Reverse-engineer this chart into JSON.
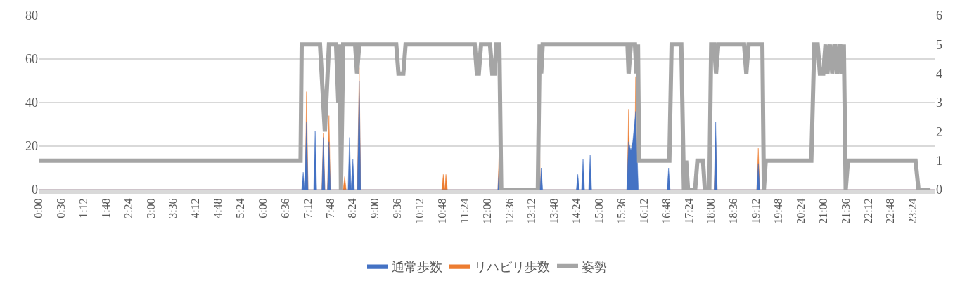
{
  "chart_data": {
    "type": "area",
    "legend": "bottom",
    "grid": "y",
    "xlim": [
      0,
      24
    ],
    "xticks": [
      {
        "value": 0,
        "label": "0:00"
      },
      {
        "value": 0.6,
        "label": "0:36"
      },
      {
        "value": 1.2,
        "label": "1:12"
      },
      {
        "value": 1.8,
        "label": "1:48"
      },
      {
        "value": 2.4,
        "label": "2:24"
      },
      {
        "value": 3.0,
        "label": "3:00"
      },
      {
        "value": 3.6,
        "label": "3:36"
      },
      {
        "value": 4.2,
        "label": "4:12"
      },
      {
        "value": 4.8,
        "label": "4:48"
      },
      {
        "value": 5.4,
        "label": "5:24"
      },
      {
        "value": 6.0,
        "label": "6:00"
      },
      {
        "value": 6.6,
        "label": "6:36"
      },
      {
        "value": 7.2,
        "label": "7:12"
      },
      {
        "value": 7.8,
        "label": "7:48"
      },
      {
        "value": 8.4,
        "label": "8:24"
      },
      {
        "value": 9.0,
        "label": "9:00"
      },
      {
        "value": 9.6,
        "label": "9:36"
      },
      {
        "value": 10.2,
        "label": "10:12"
      },
      {
        "value": 10.8,
        "label": "10:48"
      },
      {
        "value": 11.4,
        "label": "11:24"
      },
      {
        "value": 12.0,
        "label": "12:00"
      },
      {
        "value": 12.6,
        "label": "12:36"
      },
      {
        "value": 13.2,
        "label": "13:12"
      },
      {
        "value": 13.8,
        "label": "13:48"
      },
      {
        "value": 14.4,
        "label": "14:24"
      },
      {
        "value": 15.0,
        "label": "15:00"
      },
      {
        "value": 15.6,
        "label": "15:36"
      },
      {
        "value": 16.2,
        "label": "16:12"
      },
      {
        "value": 16.8,
        "label": "16:48"
      },
      {
        "value": 17.4,
        "label": "17:24"
      },
      {
        "value": 18.0,
        "label": "18:00"
      },
      {
        "value": 18.6,
        "label": "18:36"
      },
      {
        "value": 19.2,
        "label": "19:12"
      },
      {
        "value": 19.8,
        "label": "19:48"
      },
      {
        "value": 20.4,
        "label": "20:24"
      },
      {
        "value": 21.0,
        "label": "21:00"
      },
      {
        "value": 21.6,
        "label": "21:36"
      },
      {
        "value": 22.2,
        "label": "22:12"
      },
      {
        "value": 22.8,
        "label": "22:48"
      },
      {
        "value": 23.4,
        "label": "23:24"
      }
    ],
    "ylim": [
      0,
      80
    ],
    "yticks": [
      0,
      20,
      40,
      60,
      80
    ],
    "y2lim": [
      0,
      6
    ],
    "y2ticks": [
      0,
      1,
      2,
      3,
      4,
      5,
      6
    ],
    "series": [
      {
        "name": "通常歩数",
        "color": "#4472c4",
        "x": [
          0,
          7.04,
          7.08,
          7.12,
          7.17,
          7.21,
          7.36,
          7.4,
          7.44,
          7.58,
          7.62,
          7.66,
          7.73,
          7.77,
          7.81,
          8.28,
          8.32,
          8.36,
          8.41,
          8.45,
          8.53,
          8.58,
          8.62,
          12.29,
          12.33,
          12.37,
          13.35,
          13.39,
          13.42,
          13.45,
          13.49,
          14.39,
          14.43,
          14.47,
          14.53,
          14.57,
          14.61,
          14.72,
          14.76,
          14.8,
          15.74,
          15.79,
          15.85,
          15.9,
          15.98,
          16.05,
          16.82,
          16.86,
          16.9,
          18.08,
          18.12,
          18.16,
          19.22,
          19.26,
          19.3,
          23.98
        ],
        "values": [
          0,
          0,
          8,
          0,
          31,
          0,
          0,
          27,
          0,
          0,
          24,
          0,
          0,
          22,
          0,
          0,
          24,
          0,
          14,
          0,
          0,
          50,
          0,
          0,
          12,
          0,
          0,
          16,
          0,
          10,
          0,
          0,
          7,
          0,
          0,
          14,
          0,
          0,
          16,
          0,
          0,
          22,
          18,
          22,
          36,
          0,
          0,
          10,
          0,
          0,
          31,
          0,
          0,
          12,
          0,
          0
        ]
      },
      {
        "name": "リハビリ歩数",
        "color": "#ed7d31",
        "x": [
          0,
          7.13,
          7.17,
          7.21,
          7.58,
          7.62,
          7.66,
          7.73,
          7.77,
          7.81,
          8.15,
          8.19,
          8.23,
          8.53,
          8.58,
          8.62,
          10.79,
          10.83,
          10.87,
          10.9,
          10.94,
          12.29,
          12.33,
          12.37,
          13.35,
          13.39,
          13.43,
          15.75,
          15.79,
          15.83,
          15.94,
          15.98,
          16.02,
          18.08,
          18.12,
          18.16,
          19.22,
          19.26,
          19.3,
          23.98
        ],
        "values": [
          0,
          0,
          45,
          0,
          0,
          26,
          0,
          0,
          34,
          0,
          0,
          6,
          0,
          0,
          56,
          0,
          0,
          7,
          0,
          7,
          0,
          0,
          20,
          0,
          0,
          37,
          0,
          0,
          37,
          0,
          0,
          52,
          0,
          0,
          22,
          0,
          0,
          19,
          0,
          0
        ]
      },
      {
        "name": "姿勢",
        "type": "line",
        "axis": "y2",
        "color": "#a5a5a5",
        "x": [
          0,
          7.01,
          7.04,
          7.53,
          7.66,
          7.77,
          7.96,
          8.02,
          8.06,
          8.09,
          8.15,
          8.47,
          8.52,
          8.58,
          9.57,
          9.63,
          9.76,
          9.82,
          11.67,
          11.73,
          11.78,
          11.84,
          12.08,
          12.14,
          12.2,
          12.25,
          12.33,
          12.38,
          13.36,
          13.41,
          13.45,
          13.49,
          15.76,
          15.79,
          15.85,
          15.96,
          16.0,
          16.04,
          16.07,
          16.88,
          16.94,
          17.2,
          17.27,
          17.33,
          17.38,
          17.57,
          17.63,
          17.78,
          17.83,
          17.95,
          18.0,
          18.08,
          18.13,
          18.19,
          18.88,
          18.94,
          19.0,
          19.37,
          19.41,
          19.46,
          20.68,
          20.76,
          20.85,
          20.91,
          21.0,
          21.06,
          21.11,
          21.19,
          21.24,
          21.32,
          21.38,
          21.45,
          21.51,
          21.55,
          21.6,
          21.66,
          23.47,
          23.55,
          23.87
        ],
        "values": [
          1,
          1,
          5,
          5,
          2,
          5,
          5,
          3,
          5,
          0,
          5,
          5,
          4,
          5,
          5,
          4,
          4,
          5,
          5,
          4,
          4,
          5,
          5,
          4,
          4,
          5,
          5,
          0,
          0,
          5,
          4,
          5,
          5,
          4,
          5,
          5,
          4,
          5,
          1,
          1,
          5,
          5,
          0,
          1,
          0,
          0,
          1,
          1,
          0,
          0,
          5,
          5,
          4,
          5,
          5,
          4,
          5,
          5,
          0,
          1,
          1,
          5,
          5,
          4,
          4,
          5,
          4,
          5,
          4,
          5,
          4,
          5,
          4,
          5,
          0,
          1,
          1,
          0,
          0
        ]
      }
    ]
  }
}
